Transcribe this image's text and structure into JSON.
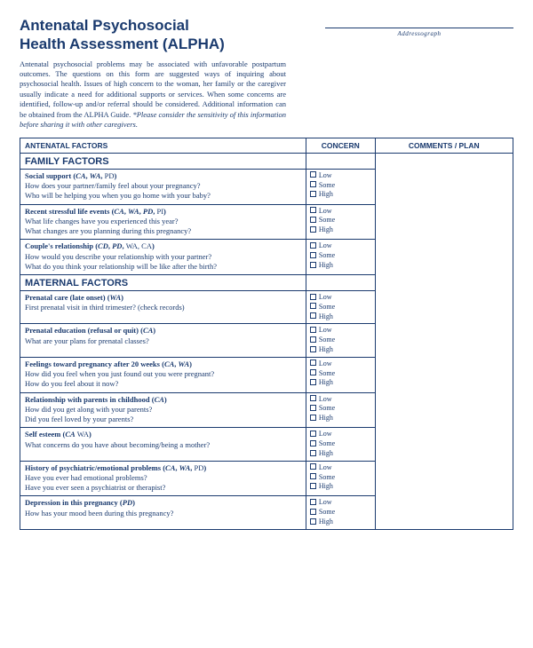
{
  "header": {
    "title_line1": "Antenatal Psychosocial",
    "title_line2": "Health Assessment (ALPHA)",
    "addressograph": "Addressograph",
    "intro_main": "Antenatal psychosocial problems may be associated with unfavorable postpartum outcomes. The questions on this form are suggested ways of inquiring about psychosocial health. Issues of high concern to the woman, her family or the caregiver usually indicate a need for additional supports or services. When some concerns are identified, follow-up and/or referral should be considered. Additional information can be obtained from the ALPHA Guide. ",
    "intro_italic": "*Please consider the sensitivity of this information before sharing it with other caregivers."
  },
  "table": {
    "headers": {
      "factors": "ANTENATAL FACTORS",
      "concern": "CONCERN",
      "comments": "COMMENTS / PLAN"
    },
    "concern_levels": [
      "Low",
      "Some",
      "High"
    ],
    "sections": [
      {
        "name": "FAMILY FACTORS",
        "rows": [
          {
            "title": "Social support",
            "tags_html": "(<span class='bi'>CA</span>, <span class='bi'>WA</span>, <span class='n'>PD</span>)",
            "questions": [
              "How does your partner/family feel about your pregnancy?",
              "Who will be helping you when you go home with your baby?"
            ]
          },
          {
            "title": "Recent stressful life events",
            "tags_html": "(<span class='bi'>CA</span>, <span class='bi'>WA</span>, <span class='bi'>PD</span>, <span class='n'>PI</span>)",
            "questions": [
              "What life changes have you experienced this year?",
              "What changes are you planning during this pregnancy?"
            ]
          },
          {
            "title": "Couple's relationship",
            "tags_html": "(<span class='bi'>CD</span>, <span class='bi'>PD</span>, <span class='n'>WA, CA</span>)",
            "questions": [
              "How would you describe your relationship with your partner?",
              "What do you think your relationship will be like after the birth?"
            ]
          }
        ]
      },
      {
        "name": "MATERNAL FACTORS",
        "rows": [
          {
            "title": "Prenatal care (late onset)",
            "tags_html": "(<span class='bi'>WA</span>)",
            "questions": [
              "First prenatal visit in third trimester? (check records)"
            ]
          },
          {
            "title": "Prenatal education (refusal or quit)",
            "tags_html": "(<span class='bi'>CA</span>)",
            "questions": [
              "What are your plans for prenatal classes?"
            ]
          },
          {
            "title": "Feelings toward pregnancy after 20 weeks",
            "tags_html": "(<span class='bi'>CA</span>, <span class='bi'>WA</span>)",
            "questions": [
              "How did you feel when you just found out you were pregnant?",
              "How do you feel about it now?"
            ]
          },
          {
            "title": "Relationship with parents in childhood",
            "tags_html": "(<span class='bi'>CA</span>)",
            "questions": [
              "How did you get along with your parents?",
              "Did you feel loved by your parents?"
            ]
          },
          {
            "title": "Self esteem",
            "tags_html": "(<span class='bi'>CA</span> <span class='n'>WA</span>)",
            "questions": [
              "What concerns do you have about becoming/being a mother?"
            ]
          },
          {
            "title": "History of psychiatric/emotional problems",
            "tags_html": "(<span class='bi'>CA</span>, <span class='bi'>WA</span>, <span class='n'>PD</span>)",
            "questions": [
              "Have you ever had emotional problems?",
              "Have you ever seen a psychiatrist or therapist?"
            ]
          },
          {
            "title": "Depression in this pregnancy",
            "tags_html": "(<span class='bi'>PD</span>)",
            "questions": [
              "How has your mood been during this pregnancy?"
            ]
          }
        ]
      }
    ]
  }
}
